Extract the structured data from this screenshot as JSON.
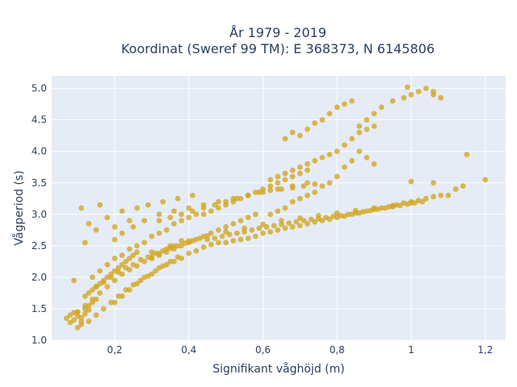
{
  "chart_data": {
    "type": "scatter",
    "title_line1": "År 1979 - 2019",
    "title_line2": "Koordinat (Sweref 99 TM): E 368373, N 6145806",
    "xlabel": "Signifikant våghöjd (m)",
    "ylabel": "Vågperiod (s)",
    "xlim": [
      0.03,
      1.255
    ],
    "ylim": [
      1.0,
      5.2
    ],
    "x_ticks": [
      0.2,
      0.4,
      0.6,
      0.8,
      1.0,
      1.2
    ],
    "x_tick_labels": [
      "0,2",
      "0,4",
      "0,6",
      "0,8",
      "1",
      "1,2"
    ],
    "y_ticks": [
      1.0,
      1.5,
      2.0,
      2.5,
      3.0,
      3.5,
      4.0,
      4.5,
      5.0
    ],
    "y_tick_labels": [
      "1.0",
      "1.5",
      "2.0",
      "2.5",
      "3.0",
      "3.5",
      "4.0",
      "4.5",
      "5.0"
    ],
    "grid": true,
    "legend": "none",
    "colors": {
      "marker": "#d4a520",
      "plot_bg": "#e5ecf6",
      "grid": "#ffffff",
      "text": "#2a3f5f"
    },
    "series": [
      {
        "x": [
          0.07,
          0.08,
          0.09,
          0.1,
          0.11,
          0.12,
          0.13,
          0.08,
          0.1,
          0.12,
          0.14,
          0.15,
          0.13,
          0.11,
          0.09,
          0.12,
          0.13,
          0.14,
          0.15,
          0.16,
          0.17,
          0.18,
          0.19,
          0.2,
          0.21,
          0.22,
          0.23,
          0.24,
          0.25,
          0.26,
          0.14,
          0.16,
          0.18,
          0.2,
          0.22,
          0.24,
          0.26,
          0.28,
          0.3,
          0.32,
          0.34,
          0.36,
          0.38,
          0.4,
          0.42,
          0.15,
          0.17,
          0.19,
          0.21,
          0.23,
          0.25,
          0.27,
          0.29,
          0.31,
          0.33,
          0.35,
          0.37,
          0.39,
          0.41,
          0.43,
          0.45,
          0.47,
          0.49,
          0.51,
          0.53,
          0.55,
          0.57,
          0.59,
          0.61,
          0.63,
          0.65,
          0.67,
          0.69,
          0.71,
          0.73,
          0.75,
          0.77,
          0.79,
          0.81,
          0.83,
          0.85,
          0.87,
          0.89,
          0.91,
          0.93,
          0.95,
          0.97,
          0.99,
          1.01,
          1.03,
          0.3,
          0.32,
          0.34,
          0.36,
          0.38,
          0.4,
          0.42,
          0.44,
          0.46,
          0.48,
          0.5,
          0.52,
          0.54,
          0.56,
          0.58,
          0.2,
          0.22,
          0.24,
          0.26,
          0.28,
          0.3,
          0.32,
          0.34,
          0.36,
          0.38,
          0.4,
          0.42,
          0.44,
          0.46,
          0.48,
          0.5,
          0.52,
          0.54,
          0.56,
          0.58,
          0.6,
          0.62,
          0.64,
          0.66,
          0.68,
          0.7,
          0.72,
          0.74,
          0.76,
          0.78,
          0.8,
          0.82,
          0.84,
          0.86,
          0.88,
          0.9,
          0.92,
          0.94,
          0.96,
          0.98,
          1.0,
          1.02,
          1.04,
          1.06,
          1.08,
          0.44,
          0.46,
          0.48,
          0.5,
          0.52,
          0.54,
          0.56,
          0.58,
          0.6,
          0.62,
          0.64,
          0.66,
          0.68,
          0.7,
          0.72,
          0.62,
          0.64,
          0.66,
          0.68,
          0.7,
          0.72,
          0.74,
          0.76,
          0.78,
          0.8,
          0.82,
          0.84,
          0.86,
          0.88,
          0.9,
          0.1,
          0.12,
          0.14,
          0.16,
          0.18,
          0.2,
          0.22,
          0.24,
          0.26,
          0.28,
          0.3,
          0.32,
          0.34,
          0.36,
          0.38,
          0.1,
          0.11,
          0.13,
          0.15,
          0.17,
          0.19,
          0.21,
          0.23,
          0.25,
          0.27,
          0.29,
          0.31,
          0.33,
          0.35,
          0.37,
          0.2,
          0.22,
          0.25,
          0.28,
          0.32,
          0.36,
          0.4,
          0.44,
          0.48,
          0.52,
          0.56,
          0.6,
          0.64,
          0.68,
          0.72,
          0.3,
          0.35,
          0.4,
          0.45,
          0.5,
          0.55,
          0.6,
          0.65,
          0.7,
          0.75,
          0.8,
          0.85,
          0.9,
          0.95,
          1.0,
          0.66,
          0.68,
          0.7,
          0.72,
          0.74,
          0.76,
          0.78,
          0.8,
          0.82,
          0.84,
          0.86,
          0.88,
          0.9,
          0.92,
          0.95,
          0.98,
          1.0,
          1.02,
          1.04,
          1.06,
          1.08,
          1.1,
          1.12,
          1.14,
          1.15,
          1.2,
          1.06,
          0.99,
          1.06,
          1.0,
          0.88,
          0.9,
          0.86,
          0.84,
          0.82,
          0.8,
          0.78,
          0.76,
          0.74,
          0.72,
          0.7,
          0.68,
          0.66,
          0.64,
          0.62,
          0.32,
          0.35,
          0.38,
          0.41,
          0.44,
          0.47,
          0.5,
          0.53,
          0.56,
          0.59,
          0.62,
          0.65,
          0.68,
          0.71,
          0.74,
          0.11,
          0.12,
          0.15,
          0.09,
          0.16,
          0.13,
          0.18,
          0.2,
          0.22,
          0.24,
          0.26,
          0.29,
          0.33,
          0.37,
          0.41
        ],
        "y": [
          1.35,
          1.4,
          1.32,
          1.45,
          1.3,
          1.5,
          1.55,
          1.28,
          1.38,
          1.42,
          1.6,
          1.65,
          1.48,
          1.36,
          1.44,
          1.7,
          1.75,
          1.8,
          1.85,
          1.9,
          1.95,
          2.0,
          2.05,
          2.1,
          2.15,
          2.2,
          2.25,
          2.3,
          2.35,
          2.4,
          2.0,
          2.1,
          2.2,
          2.3,
          2.35,
          2.45,
          2.5,
          2.55,
          2.65,
          2.7,
          2.75,
          2.85,
          2.9,
          2.95,
          3.0,
          1.85,
          1.92,
          2.0,
          2.08,
          2.15,
          2.2,
          2.28,
          2.32,
          2.38,
          2.42,
          2.46,
          2.5,
          2.54,
          2.58,
          2.62,
          2.6,
          2.62,
          2.65,
          2.68,
          2.7,
          2.72,
          2.75,
          2.78,
          2.8,
          2.82,
          2.84,
          2.86,
          2.88,
          2.9,
          2.92,
          2.93,
          2.95,
          2.97,
          2.98,
          3.0,
          3.02,
          3.04,
          3.06,
          3.08,
          3.1,
          3.12,
          3.14,
          3.16,
          3.18,
          3.2,
          2.3,
          2.35,
          2.4,
          2.45,
          2.5,
          2.55,
          2.6,
          2.65,
          2.7,
          2.75,
          2.8,
          2.85,
          2.9,
          2.95,
          3.0,
          1.6,
          1.7,
          1.8,
          1.9,
          2.0,
          2.05,
          2.15,
          2.2,
          2.25,
          2.3,
          2.38,
          2.42,
          2.48,
          2.52,
          2.55,
          2.55,
          2.58,
          2.6,
          2.62,
          2.65,
          2.7,
          2.72,
          2.75,
          2.78,
          2.8,
          2.82,
          2.85,
          2.88,
          2.9,
          2.92,
          2.95,
          2.97,
          3.0,
          3.02,
          3.05,
          3.08,
          3.1,
          3.12,
          3.15,
          3.18,
          3.2,
          3.22,
          3.25,
          3.28,
          3.3,
          3.0,
          3.05,
          3.1,
          3.15,
          3.2,
          3.25,
          3.3,
          3.35,
          3.4,
          3.45,
          3.5,
          3.55,
          3.6,
          3.65,
          3.7,
          3.55,
          3.6,
          3.65,
          3.7,
          3.75,
          3.8,
          3.85,
          3.9,
          3.95,
          4.0,
          4.1,
          4.2,
          4.3,
          4.35,
          4.4,
          1.45,
          1.55,
          1.65,
          1.75,
          1.85,
          1.95,
          2.05,
          2.12,
          2.18,
          2.25,
          2.32,
          2.38,
          2.45,
          2.5,
          2.58,
          1.2,
          1.25,
          1.3,
          1.4,
          1.5,
          1.6,
          1.7,
          1.8,
          1.88,
          1.95,
          2.02,
          2.1,
          2.18,
          2.25,
          2.32,
          2.6,
          2.7,
          2.8,
          2.9,
          3.0,
          3.05,
          3.1,
          3.15,
          3.2,
          3.25,
          3.3,
          3.35,
          3.4,
          3.45,
          3.5,
          2.4,
          2.5,
          2.58,
          2.66,
          2.72,
          2.78,
          2.84,
          2.9,
          2.94,
          2.98,
          3.02,
          3.06,
          3.1,
          3.14,
          3.18,
          4.2,
          4.3,
          4.25,
          4.35,
          4.45,
          4.5,
          4.6,
          4.7,
          4.75,
          4.8,
          4.4,
          4.5,
          4.6,
          4.7,
          4.8,
          4.85,
          4.9,
          4.95,
          5.0,
          4.9,
          4.85,
          3.3,
          3.4,
          3.45,
          3.95,
          3.55,
          3.5,
          5.02,
          4.95,
          3.52,
          3.9,
          3.8,
          4.0,
          3.85,
          3.75,
          3.6,
          3.5,
          3.45,
          3.35,
          3.3,
          3.25,
          3.2,
          3.1,
          3.05,
          3.0,
          2.9,
          2.95,
          3.0,
          3.05,
          3.1,
          3.15,
          3.2,
          3.25,
          3.3,
          3.35,
          3.38,
          3.4,
          3.42,
          3.45,
          3.48,
          3.1,
          2.55,
          2.75,
          1.95,
          3.15,
          2.85,
          2.95,
          2.8,
          3.05,
          2.9,
          3.1,
          3.15,
          3.2,
          3.25,
          3.3
        ]
      }
    ]
  }
}
